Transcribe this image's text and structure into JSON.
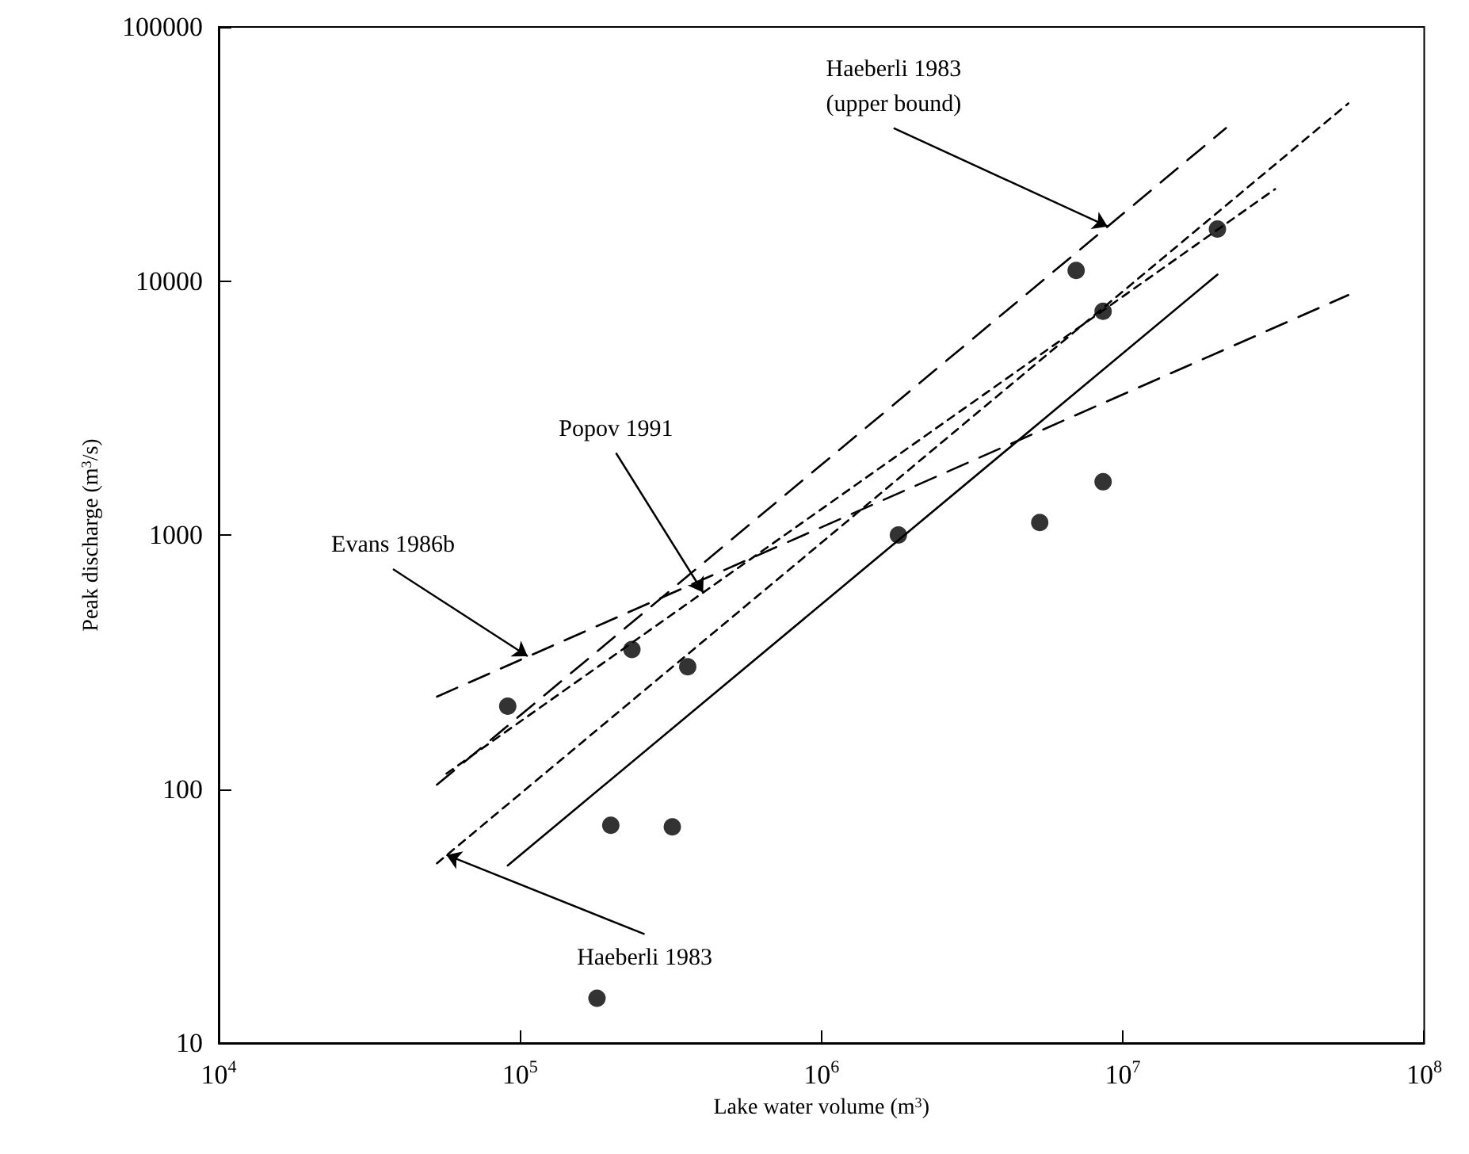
{
  "chart_data": {
    "type": "scatter",
    "xlabel": "Lake water volume (m$^{3}$)",
    "ylabel": "Peak discharge (m$^{3}$/s)",
    "log": "xy",
    "grid": false,
    "marker": "circle",
    "xlim": [
      10000,
      100000000
    ],
    "xticks": [
      {
        "value": 10000,
        "label": "10$^{4}$"
      },
      {
        "value": 100000,
        "label": "10$^{5}$"
      },
      {
        "value": 1000000,
        "label": "10$^{6}$"
      },
      {
        "value": 10000000,
        "label": "10$^{7}$"
      },
      {
        "value": 100000000,
        "label": "10$^{8}$"
      }
    ],
    "ylim": [
      10,
      100000
    ],
    "yticks": [
      10,
      100,
      1000,
      10000,
      100000
    ],
    "series": [
      {
        "type": "scatter",
        "color": "#000000",
        "x": [
          91000,
          180000,
          200000,
          235000,
          320000,
          360000,
          1800000,
          5300000,
          7000000,
          8600000,
          8600000,
          20600000
        ],
        "values": [
          212,
          15,
          72,
          354,
          71,
          303,
          1000,
          1120,
          11000,
          7600,
          1620,
          16000
        ]
      },
      {
        "type": "line",
        "color": "#000000",
        "line_style": "solid",
        "marker": "none",
        "x": [
          91000,
          20600000
        ],
        "values": [
          50,
          10600
        ]
      },
      {
        "type": "line",
        "color": "#000000",
        "line_style": "dashed",
        "marker": "none",
        "x": [
          53000,
          22000000
        ],
        "values": [
          104,
          40000
        ]
      },
      {
        "type": "line",
        "color": "#000000",
        "line_style": "dotted",
        "marker": "none",
        "x": [
          53000,
          56000000
        ],
        "values": [
          51,
          50000
        ]
      },
      {
        "type": "line",
        "color": "#000000",
        "line_style": "dotted",
        "marker": "none",
        "x": [
          57000,
          32000000
        ],
        "values": [
          115,
          23000
        ]
      },
      {
        "type": "line",
        "color": "#000000",
        "line_style": "dashed",
        "marker": "none",
        "x": [
          53000,
          56000000
        ],
        "values": [
          231,
          8800
        ]
      }
    ],
    "annotations": [
      {
        "text": "Evans 1986b",
        "x": 106000,
        "y": 333
      },
      {
        "text": "Popov 1991",
        "x": 405000,
        "y": 594
      },
      {
        "text": "Haeberli 1983\n(upper bound)",
        "x": 8900000,
        "y": 16400
      },
      {
        "text": "Haeberli 1983",
        "x": 57000,
        "y": 55
      }
    ]
  }
}
